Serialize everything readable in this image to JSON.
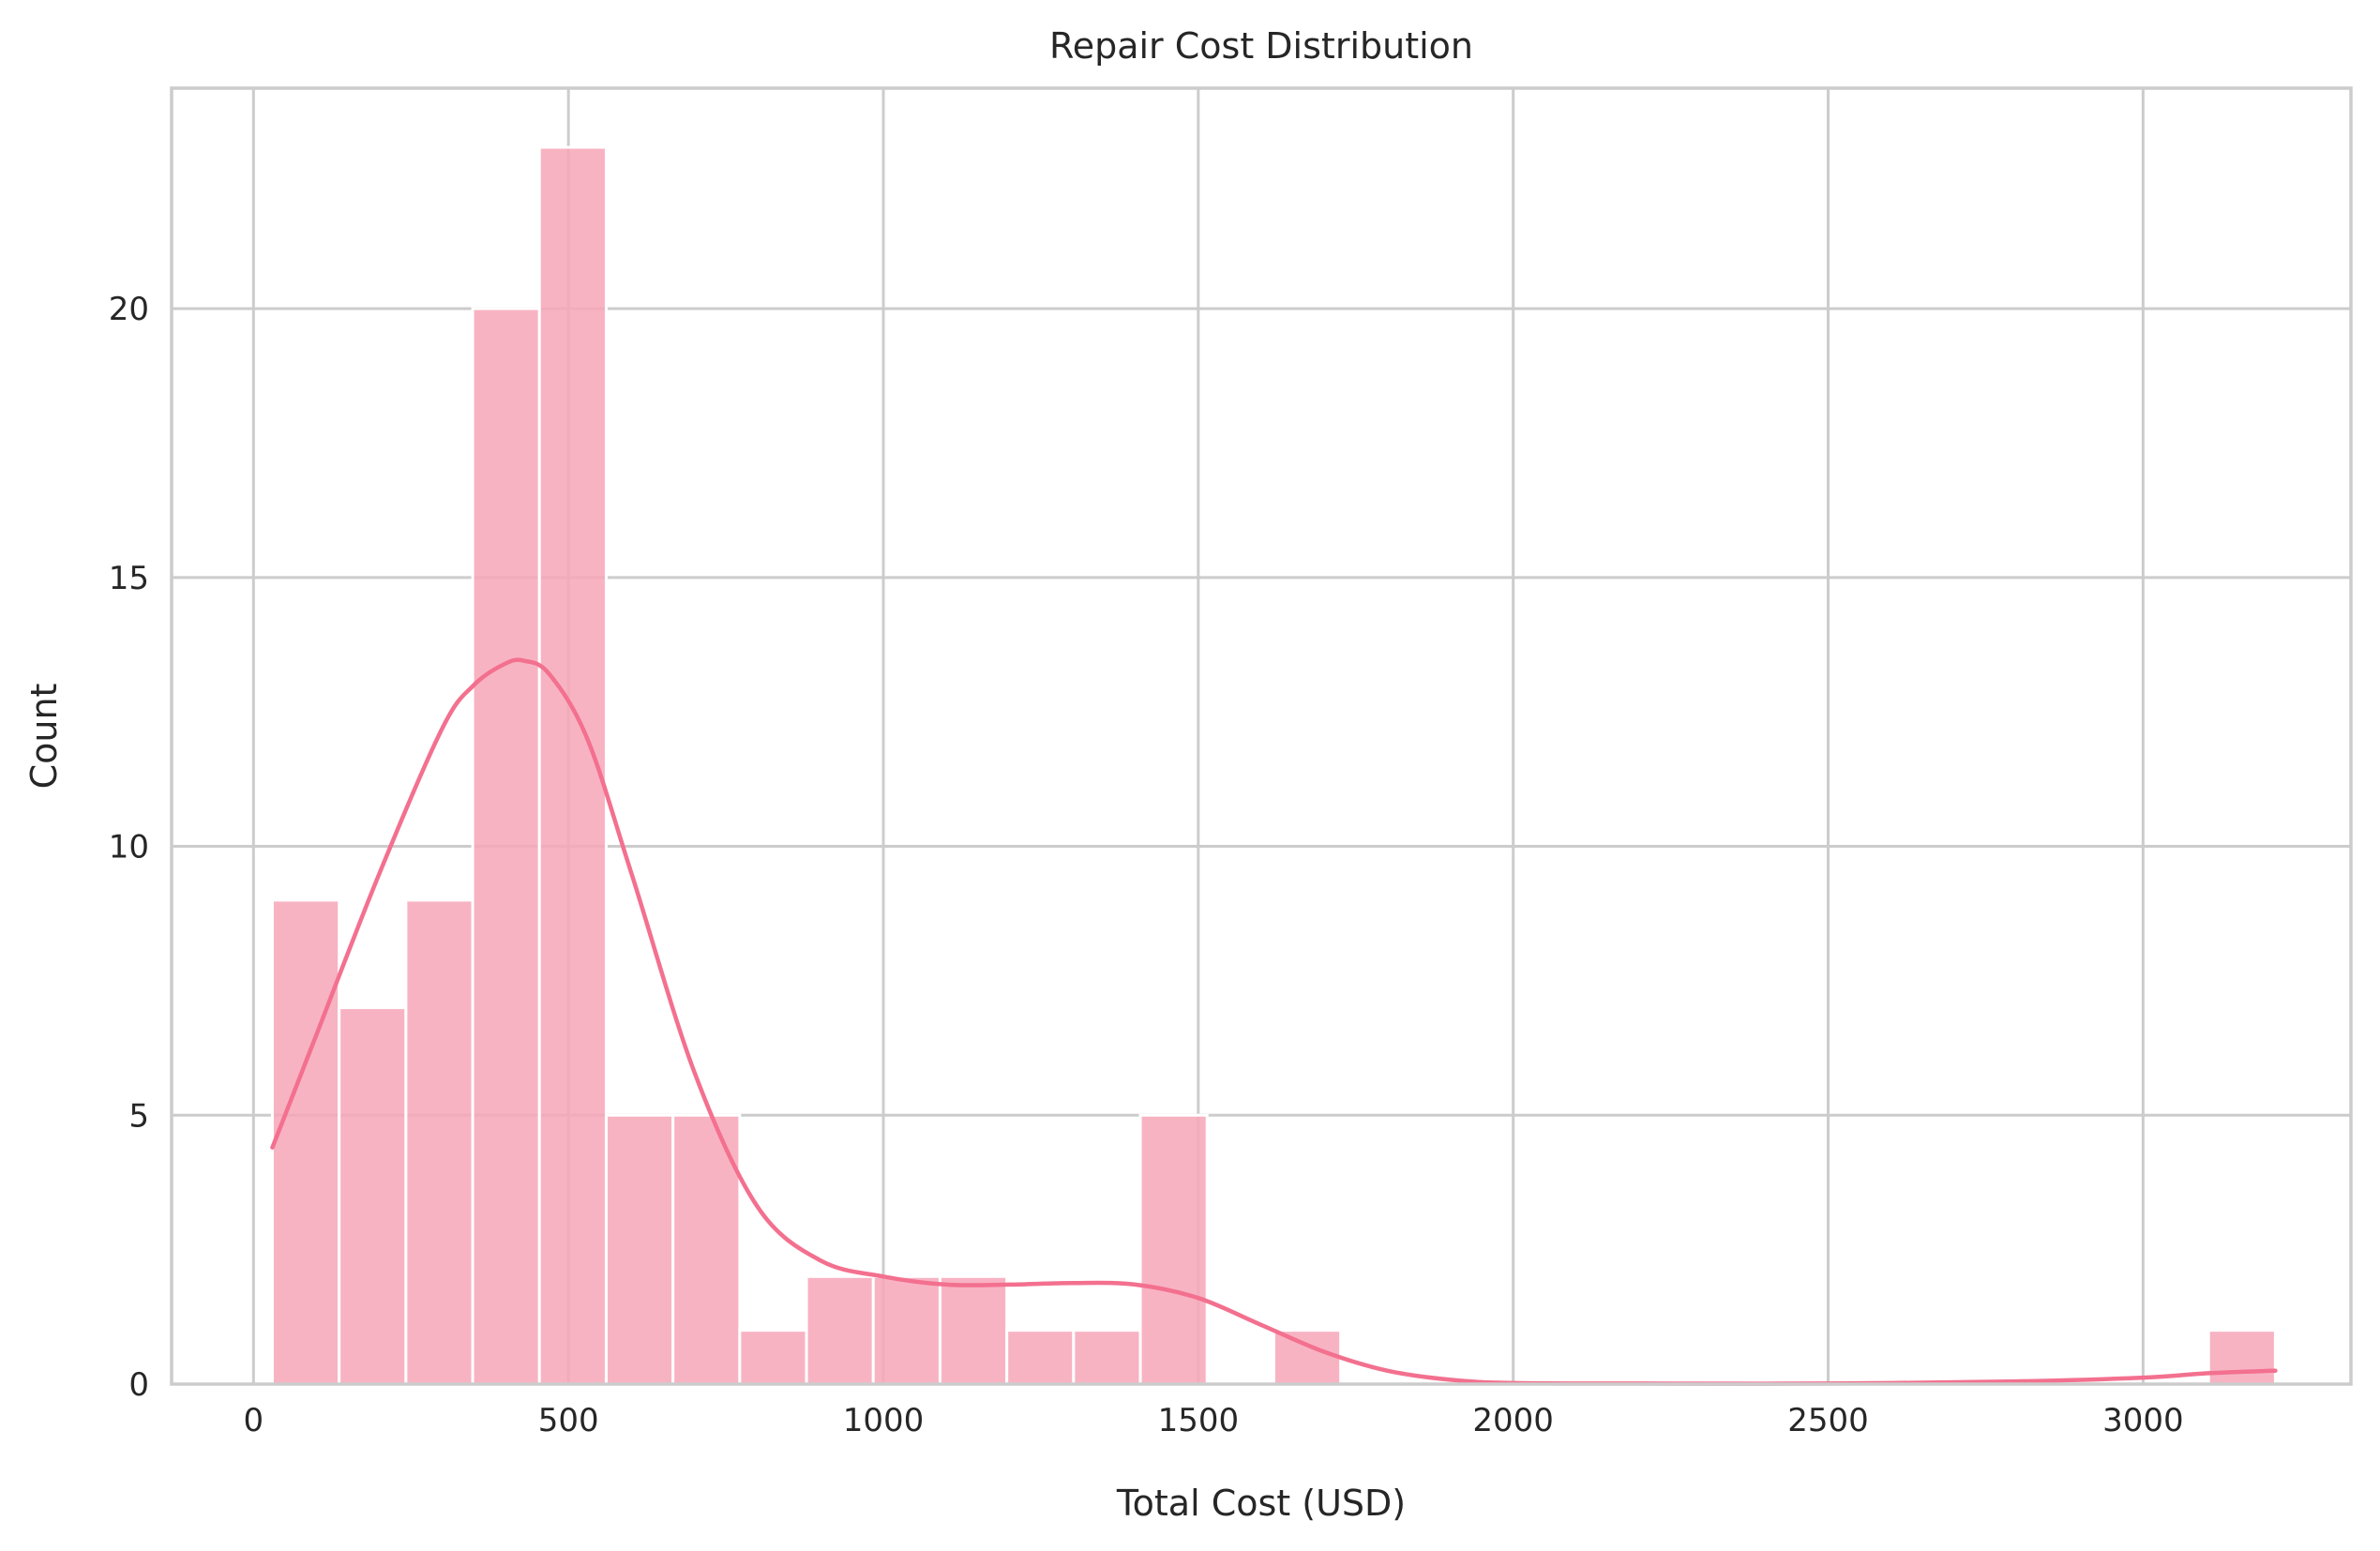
{
  "chart_data": {
    "type": "bar",
    "subtype": "histogram_with_kde",
    "title": "Repair Cost Distribution",
    "xlabel": "Total Cost (USD)",
    "ylabel": "Count",
    "xlim": [
      -130,
      3330
    ],
    "ylim": [
      0,
      24.1
    ],
    "x_ticks": [
      0,
      500,
      1000,
      1500,
      2000,
      2500,
      3000
    ],
    "y_ticks": [
      0,
      5,
      10,
      15,
      20
    ],
    "grid": true,
    "bar_color": "#f7a6b9",
    "kde_color": "#f3708f",
    "grid_color": "#cccccc",
    "bins": [
      {
        "x0": 30,
        "x1": 136,
        "count": 9
      },
      {
        "x0": 136,
        "x1": 242,
        "count": 7
      },
      {
        "x0": 242,
        "x1": 348,
        "count": 9
      },
      {
        "x0": 348,
        "x1": 454,
        "count": 20
      },
      {
        "x0": 454,
        "x1": 560,
        "count": 23
      },
      {
        "x0": 560,
        "x1": 666,
        "count": 5
      },
      {
        "x0": 666,
        "x1": 772,
        "count": 5
      },
      {
        "x0": 772,
        "x1": 878,
        "count": 1
      },
      {
        "x0": 878,
        "x1": 984,
        "count": 2
      },
      {
        "x0": 984,
        "x1": 1090,
        "count": 2
      },
      {
        "x0": 1090,
        "x1": 1196,
        "count": 2
      },
      {
        "x0": 1196,
        "x1": 1302,
        "count": 1
      },
      {
        "x0": 1302,
        "x1": 1408,
        "count": 1
      },
      {
        "x0": 1408,
        "x1": 1514,
        "count": 5
      },
      {
        "x0": 1514,
        "x1": 1620,
        "count": 0
      },
      {
        "x0": 1620,
        "x1": 1726,
        "count": 1
      },
      {
        "x0": 1726,
        "x1": 1832,
        "count": 0
      },
      {
        "x0": 1832,
        "x1": 1938,
        "count": 0
      },
      {
        "x0": 1938,
        "x1": 2044,
        "count": 0
      },
      {
        "x0": 2044,
        "x1": 2150,
        "count": 0
      },
      {
        "x0": 2150,
        "x1": 2256,
        "count": 0
      },
      {
        "x0": 2256,
        "x1": 2362,
        "count": 0
      },
      {
        "x0": 2362,
        "x1": 2468,
        "count": 0
      },
      {
        "x0": 2468,
        "x1": 2574,
        "count": 0
      },
      {
        "x0": 2574,
        "x1": 2680,
        "count": 0
      },
      {
        "x0": 2680,
        "x1": 2786,
        "count": 0
      },
      {
        "x0": 2786,
        "x1": 2892,
        "count": 0
      },
      {
        "x0": 2892,
        "x1": 2998,
        "count": 0
      },
      {
        "x0": 2998,
        "x1": 3104,
        "count": 0
      },
      {
        "x0": 3104,
        "x1": 3210,
        "count": 1
      }
    ],
    "kde": {
      "x": [
        30,
        100,
        200,
        300,
        350,
        400,
        430,
        470,
        530,
        600,
        700,
        800,
        900,
        1000,
        1100,
        1200,
        1300,
        1400,
        1500,
        1600,
        1700,
        1800,
        1900,
        2000,
        2200,
        2500,
        2800,
        3000,
        3100,
        3210
      ],
      "y": [
        4.4,
        6.5,
        9.5,
        12.2,
        13.0,
        13.4,
        13.45,
        13.2,
        12.0,
        9.5,
        5.8,
        3.3,
        2.3,
        2.0,
        1.85,
        1.85,
        1.88,
        1.85,
        1.6,
        1.1,
        0.6,
        0.25,
        0.08,
        0.02,
        0.01,
        0.01,
        0.05,
        0.12,
        0.2,
        0.25
      ]
    }
  }
}
